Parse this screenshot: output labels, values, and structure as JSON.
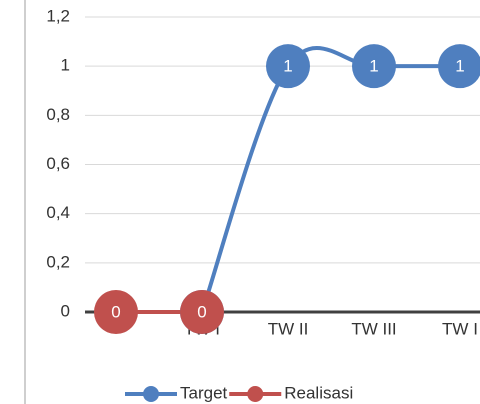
{
  "chart_data": {
    "type": "line",
    "categories": [
      null,
      "TW I",
      "TW II",
      "TW III",
      "TW I"
    ],
    "series": [
      {
        "name": "Target",
        "color": "#4f7fbf",
        "values": [
          null,
          0,
          1,
          1,
          1
        ]
      },
      {
        "name": "Realisasi",
        "color": "#c0504d",
        "values": [
          0,
          0,
          null,
          null,
          null
        ]
      }
    ],
    "ylim": [
      0,
      1.2
    ],
    "yticks": [
      0,
      {
        "value": 0.2,
        "label": "0,2"
      },
      {
        "value": 0.4,
        "label": "0,4"
      },
      {
        "value": 0.6,
        "label": "0,6"
      },
      {
        "value": 0.8,
        "label": "0,8"
      },
      1,
      {
        "value": 1.2,
        "label": "1,2"
      }
    ],
    "grid": true,
    "smooth": true,
    "data_labels": true,
    "legend": "bottom"
  }
}
